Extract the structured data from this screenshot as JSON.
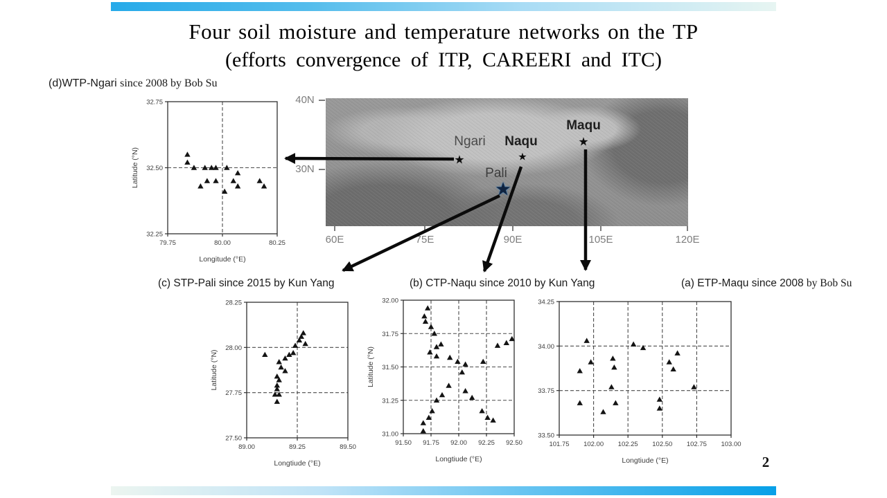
{
  "slide": {
    "title_line1": "Four soil moisture and temperature networks on the TP",
    "title_line2": "(efforts convergence of ITP, CAREERI and ITC)",
    "page_number": "2"
  },
  "map": {
    "star_icon": "★",
    "cities": {
      "ngari": "Ngari",
      "naqu": "Naqu",
      "maqu": "Maqu",
      "pali": "Pali"
    },
    "ytick_labels": [
      "40N",
      "30N"
    ],
    "xtick_labels": [
      "60E",
      "75E",
      "90E",
      "105E",
      "120E"
    ]
  },
  "chart_data": [
    {
      "id": "d",
      "type": "scatter",
      "title": "(d)WTP-Ngari since 2008 by Bob Su",
      "title_parts": {
        "sans": "(d)WTP-Ngari ",
        "serif": "since 2008 by Bob Su"
      },
      "xlabel": "Longitude (°E)",
      "ylabel": "Latitude (°N)",
      "xlim": [
        79.75,
        80.25
      ],
      "ylim": [
        32.25,
        32.75
      ],
      "xticks": [
        79.75,
        80.0,
        80.25
      ],
      "xtick_labels": [
        "79.75",
        "80.00",
        "80.25"
      ],
      "yticks": [
        32.25,
        32.5,
        32.75
      ],
      "ytick_labels": [
        "32.25",
        "32.50",
        "32.75"
      ],
      "grid_x": [
        80.0
      ],
      "grid_y": [
        32.5
      ],
      "points": [
        [
          79.84,
          32.55
        ],
        [
          79.84,
          32.52
        ],
        [
          79.87,
          32.5
        ],
        [
          79.92,
          32.5
        ],
        [
          79.95,
          32.5
        ],
        [
          79.97,
          32.5
        ],
        [
          80.02,
          32.5
        ],
        [
          80.07,
          32.48
        ],
        [
          79.9,
          32.43
        ],
        [
          79.93,
          32.45
        ],
        [
          79.97,
          32.45
        ],
        [
          80.01,
          32.41
        ],
        [
          80.05,
          32.45
        ],
        [
          80.07,
          32.43
        ],
        [
          80.17,
          32.45
        ],
        [
          80.19,
          32.43
        ]
      ]
    },
    {
      "id": "c",
      "type": "scatter",
      "title": "(c) STP-Pali  since 2015 by Kun Yang",
      "title_parts": {
        "sans": "(c) STP-Pali  since 2015 by Kun Yang",
        "serif": ""
      },
      "xlabel": "Longtiude (°E)",
      "ylabel": "Latitude (°N)",
      "xlim": [
        89.0,
        89.5
      ],
      "ylim": [
        27.5,
        28.25
      ],
      "xticks": [
        89.0,
        89.25,
        89.5
      ],
      "xtick_labels": [
        "89.00",
        "89.25",
        "89.50"
      ],
      "yticks": [
        27.5,
        27.75,
        28.0,
        28.25
      ],
      "ytick_labels": [
        "27.50",
        "27.75",
        "28.00",
        "28.25"
      ],
      "grid_x": [
        89.25
      ],
      "grid_y": [
        27.75,
        28.0
      ],
      "points": [
        [
          89.09,
          27.96
        ],
        [
          89.16,
          27.92
        ],
        [
          89.17,
          27.89
        ],
        [
          89.19,
          27.87
        ],
        [
          89.19,
          27.94
        ],
        [
          89.21,
          27.96
        ],
        [
          89.23,
          27.97
        ],
        [
          89.24,
          28.01
        ],
        [
          89.26,
          28.04
        ],
        [
          89.27,
          28.06
        ],
        [
          89.28,
          28.08
        ],
        [
          89.29,
          28.02
        ],
        [
          89.15,
          27.84
        ],
        [
          89.16,
          27.82
        ],
        [
          89.15,
          27.79
        ],
        [
          89.15,
          27.77
        ],
        [
          89.14,
          27.74
        ],
        [
          89.16,
          27.74
        ],
        [
          89.15,
          27.7
        ]
      ]
    },
    {
      "id": "b",
      "type": "scatter",
      "title": "(b) CTP-Naqu since 2010 by Kun Yang",
      "title_parts": {
        "sans": "(b) CTP-Naqu since 2010 by Kun Yang",
        "serif": ""
      },
      "xlabel": "Longtiude (°E)",
      "ylabel": "Latitude (°N)",
      "xlim": [
        91.5,
        92.5
      ],
      "ylim": [
        31.0,
        32.0
      ],
      "xticks": [
        91.5,
        91.75,
        92.0,
        92.25,
        92.5
      ],
      "xtick_labels": [
        "91.50",
        "91.75",
        "92.00",
        "92.25",
        "92.50"
      ],
      "yticks": [
        31.0,
        31.25,
        31.5,
        31.75,
        32.0
      ],
      "ytick_labels": [
        "31.00",
        "31.25",
        "31.50",
        "31.75",
        "32.00"
      ],
      "grid_x": [
        91.75,
        92.0,
        92.25
      ],
      "grid_y": [
        31.25,
        31.5,
        31.75
      ],
      "points": [
        [
          91.72,
          31.94
        ],
        [
          91.69,
          31.88
        ],
        [
          91.7,
          31.84
        ],
        [
          91.75,
          31.8
        ],
        [
          91.78,
          31.75
        ],
        [
          91.84,
          31.67
        ],
        [
          91.8,
          31.65
        ],
        [
          91.74,
          31.61
        ],
        [
          91.8,
          31.58
        ],
        [
          91.92,
          31.57
        ],
        [
          91.99,
          31.54
        ],
        [
          92.06,
          31.52
        ],
        [
          92.22,
          31.54
        ],
        [
          92.03,
          31.46
        ],
        [
          91.91,
          31.36
        ],
        [
          92.06,
          31.32
        ],
        [
          91.85,
          31.29
        ],
        [
          91.8,
          31.25
        ],
        [
          92.12,
          31.27
        ],
        [
          91.76,
          31.17
        ],
        [
          92.21,
          31.17
        ],
        [
          91.73,
          31.12
        ],
        [
          92.26,
          31.12
        ],
        [
          92.31,
          31.1
        ],
        [
          91.68,
          31.08
        ],
        [
          91.68,
          31.02
        ],
        [
          92.35,
          31.66
        ],
        [
          92.43,
          31.68
        ],
        [
          92.48,
          31.71
        ]
      ]
    },
    {
      "id": "a",
      "type": "scatter",
      "title": "(a) ETP-Maqu since 2008 by Bob Su",
      "title_parts": {
        "sans": "(a) ETP-Maqu since 2008 ",
        "serif": "by Bob Su"
      },
      "xlabel": "Longtiude (°E)",
      "ylabel": "",
      "xlim": [
        101.75,
        103.0
      ],
      "ylim": [
        33.5,
        34.25
      ],
      "xticks": [
        101.75,
        102.0,
        102.25,
        102.5,
        102.75,
        103.0
      ],
      "xtick_labels": [
        "101.75",
        "102.00",
        "102.25",
        "102.50",
        "102.75",
        "103.00"
      ],
      "yticks": [
        33.5,
        33.75,
        34.0,
        34.25
      ],
      "ytick_labels": [
        "33.50",
        "33.75",
        "34.00",
        "34.25"
      ],
      "grid_x": [
        102.0,
        102.25,
        102.5,
        102.75
      ],
      "grid_y": [
        33.75,
        34.0
      ],
      "points": [
        [
          101.95,
          34.03
        ],
        [
          102.29,
          34.01
        ],
        [
          102.36,
          33.99
        ],
        [
          102.61,
          33.96
        ],
        [
          102.14,
          33.93
        ],
        [
          101.98,
          33.91
        ],
        [
          102.55,
          33.91
        ],
        [
          102.15,
          33.88
        ],
        [
          102.58,
          33.87
        ],
        [
          101.9,
          33.86
        ],
        [
          102.13,
          33.77
        ],
        [
          102.73,
          33.77
        ],
        [
          102.48,
          33.7
        ],
        [
          101.9,
          33.68
        ],
        [
          102.16,
          33.68
        ],
        [
          102.48,
          33.65
        ],
        [
          102.07,
          33.63
        ]
      ]
    }
  ]
}
